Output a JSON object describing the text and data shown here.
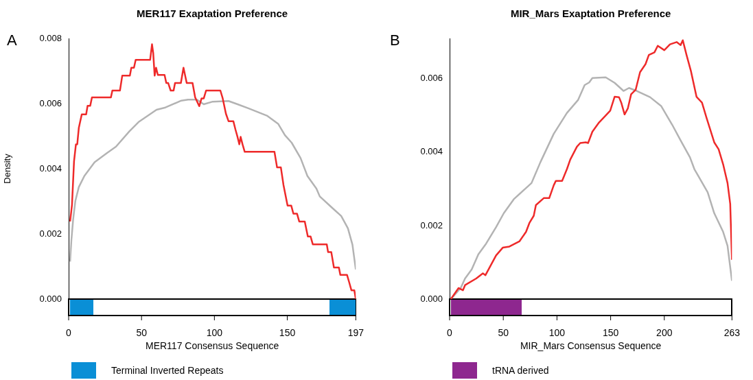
{
  "chart_data": [
    {
      "type": "line",
      "title": "MER117 Exaptation Preference",
      "xlabel": "MER117 Consensus Sequence",
      "ylabel": "Density",
      "annotations": [
        "A",
        "Terminal Inverted Repeats"
      ],
      "xlim": [
        0,
        197
      ],
      "xticks": [
        0,
        50,
        100,
        150,
        197
      ],
      "ylim": [
        0,
        0.008
      ],
      "yticks": [
        {
          "value": 0,
          "label": "0.000"
        },
        {
          "value": 0.002,
          "label": "0.002"
        },
        {
          "value": 0.004,
          "label": "0.004"
        },
        {
          "value": 0.006,
          "label": "0.006"
        },
        {
          "value": 0.008,
          "label": "0.008"
        }
      ],
      "series": [
        {
          "color": "#b3b3b3",
          "x": [
            1,
            1.9,
            3.1,
            4.6,
            7,
            10.8,
            17.8,
            26.2,
            32.5,
            41.7,
            47.9,
            60.3,
            66.4,
            77.3,
            81.9,
            88,
            92.7,
            98.9,
            109.7,
            115.9,
            123.6,
            136,
            143.7,
            148.4,
            153,
            159.1,
            163.8,
            170,
            172.3,
            180.8,
            187,
            191.6,
            194.7,
            197
          ],
          "values": [
            0.00115,
            0.00182,
            0.00245,
            0.00301,
            0.00344,
            0.00378,
            0.0042,
            0.00448,
            0.00468,
            0.00515,
            0.00543,
            0.00581,
            0.00588,
            0.00609,
            0.00612,
            0.00612,
            0.00598,
            0.00606,
            0.00608,
            0.00598,
            0.00585,
            0.00563,
            0.00538,
            0.00503,
            0.0048,
            0.00433,
            0.00378,
            0.00339,
            0.00315,
            0.0028,
            0.00255,
            0.00217,
            0.00167,
            0.00091
          ]
        },
        {
          "color": "#ee2a2a",
          "x": [
            1,
            2.3,
            3.7,
            5,
            5.9,
            7,
            9,
            12,
            13,
            14.8,
            16,
            29,
            30,
            35.2,
            36.8,
            42,
            43,
            44.8,
            46,
            55.9,
            57.2,
            58,
            59,
            60,
            61.2,
            65.8,
            67,
            68.3,
            70,
            72,
            73,
            77,
            78.8,
            81,
            85,
            86.8,
            89.6,
            91.2,
            92.7,
            94.3,
            104.1,
            105.7,
            107.9,
            109.7,
            113,
            114.4,
            115.9,
            117.1,
            118,
            119.3,
            120.8,
            141.2,
            143,
            145.6,
            147.4,
            150.2,
            152.7,
            154.2,
            156.7,
            158.2,
            162,
            164.1,
            166,
            167.5,
            177.1,
            178,
            180.2,
            182,
            185.4,
            186.4,
            191,
            192.5,
            194,
            196,
            197
          ],
          "values": [
            0.00238,
            0.00289,
            0.00423,
            0.00475,
            0.00475,
            0.00526,
            0.00567,
            0.00567,
            0.00593,
            0.00593,
            0.00619,
            0.00619,
            0.0064,
            0.0064,
            0.00686,
            0.00686,
            0.0071,
            0.0071,
            0.00734,
            0.00734,
            0.00782,
            0.00756,
            0.00686,
            0.0071,
            0.00688,
            0.00688,
            0.00663,
            0.00663,
            0.0064,
            0.0064,
            0.00663,
            0.00663,
            0.0071,
            0.00663,
            0.00663,
            0.00619,
            0.00592,
            0.00616,
            0.00616,
            0.0064,
            0.0064,
            0.00616,
            0.00569,
            0.00546,
            0.00546,
            0.00521,
            0.00497,
            0.00475,
            0.00498,
            0.00475,
            0.00452,
            0.00452,
            0.00404,
            0.00404,
            0.0035,
            0.00287,
            0.00287,
            0.00262,
            0.00262,
            0.00238,
            0.00238,
            0.00192,
            0.00192,
            0.00168,
            0.00168,
            0.00144,
            0.00144,
            0.00097,
            0.00097,
            0.00074,
            0.00074,
            0.00051,
            0.00027,
            0.00027,
            0
          ]
        }
      ]
    },
    {
      "type": "line",
      "title": "MIR_Mars Exaptation Preference",
      "xlabel": "MIR_Mars Consensus Sequence",
      "annotations": [
        "B",
        "tRNA derived"
      ],
      "xlim": [
        0,
        263
      ],
      "xticks": [
        0,
        50,
        100,
        150,
        200,
        263
      ],
      "ylim": [
        0,
        0.0071
      ],
      "yticks": [
        {
          "value": 0,
          "label": "0.000"
        },
        {
          "value": 0.002,
          "label": "0.002"
        },
        {
          "value": 0.004,
          "label": "0.004"
        },
        {
          "value": 0.006,
          "label": "0.006"
        }
      ],
      "series": [
        {
          "color": "#b3b3b3",
          "x": [
            1.2,
            10.3,
            14.4,
            20.6,
            26.8,
            34,
            43.3,
            50.5,
            59.8,
            76.3,
            84.6,
            97,
            109.3,
            119.6,
            125.8,
            130,
            133,
            145.4,
            153.7,
            162,
            167.1,
            174.3,
            186.7,
            197,
            207.3,
            215.6,
            223.9,
            228,
            240.4,
            246.5,
            254.8,
            258.9,
            263
          ],
          "values": [
            0,
            0.0003,
            0.00056,
            0.00081,
            0.00122,
            0.00151,
            0.00196,
            0.00234,
            0.00272,
            0.00316,
            0.00373,
            0.0045,
            0.00507,
            0.00542,
            0.00583,
            0.0059,
            0.00602,
            0.00604,
            0.00589,
            0.00567,
            0.00575,
            0.00567,
            0.0055,
            0.00526,
            0.00475,
            0.0043,
            0.00386,
            0.00354,
            0.00291,
            0.00234,
            0.00183,
            0.00145,
            0.0005
          ]
        },
        {
          "color": "#ee2a2a",
          "x": [
            1.2,
            8.3,
            12.4,
            14.4,
            24.8,
            31,
            33.4,
            43.3,
            49.5,
            55.7,
            65,
            71.2,
            74.3,
            78.4,
            80.4,
            87.7,
            92.8,
            97,
            99,
            104.8,
            109.3,
            112.4,
            118.6,
            121.7,
            126.9,
            129,
            133,
            139.2,
            145.4,
            149.6,
            153.7,
            157.8,
            159.9,
            163,
            166,
            169.1,
            173.3,
            177.4,
            182.5,
            185.6,
            190.8,
            193.9,
            200,
            205.3,
            211.5,
            215.2,
            217.2,
            220.7,
            224.8,
            230,
            235.1,
            239.3,
            246.5,
            250.6,
            254.8,
            258.9,
            261.4,
            263
          ],
          "values": [
            0,
            0.0003,
            0.00024,
            0.00038,
            0.00056,
            0.0007,
            0.00065,
            0.00119,
            0.0014,
            0.00143,
            0.00157,
            0.00183,
            0.00207,
            0.00227,
            0.00256,
            0.00275,
            0.00275,
            0.0031,
            0.00322,
            0.00322,
            0.00354,
            0.0038,
            0.00415,
            0.00425,
            0.00427,
            0.00425,
            0.00456,
            0.00481,
            0.005,
            0.00513,
            0.00551,
            0.0055,
            0.00535,
            0.00503,
            0.00519,
            0.00558,
            0.0057,
            0.00618,
            0.0064,
            0.00665,
            0.00672,
            0.0069,
            0.00678,
            0.00694,
            0.007,
            0.00692,
            0.00705,
            0.00665,
            0.00621,
            0.00551,
            0.00535,
            0.00494,
            0.00427,
            0.00408,
            0.00367,
            0.00316,
            0.00259,
            0.00107
          ]
        }
      ]
    }
  ]
}
